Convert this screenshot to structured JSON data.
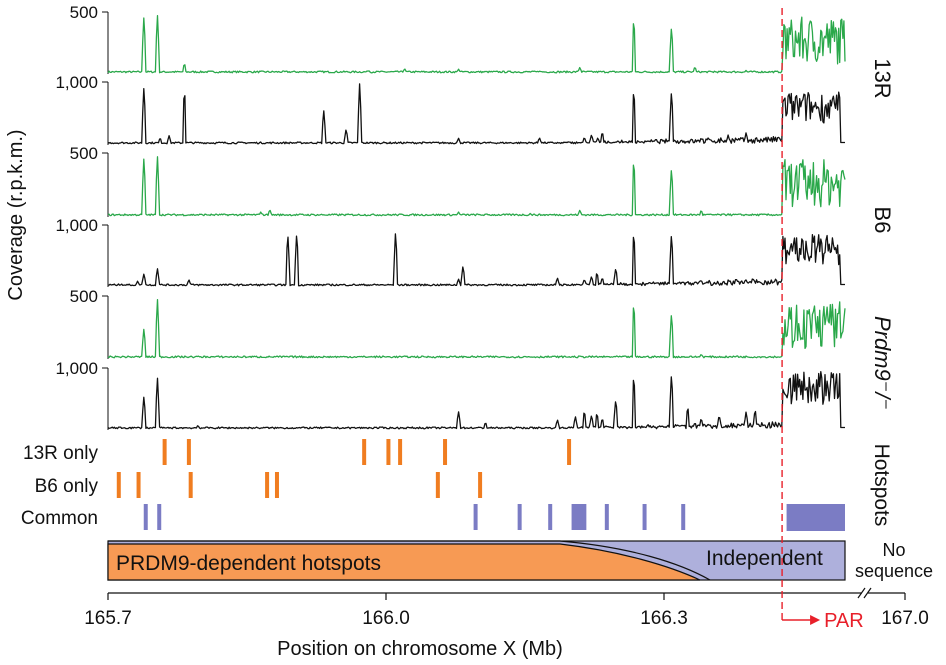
{
  "chart_data": {
    "type": "line",
    "ylabel": "Coverage (r.p.k.m.)",
    "xlabel": "Position on chromosome X (Mb)",
    "x_ticks": [
      "165.7",
      "166.0",
      "166.3",
      "167.0"
    ],
    "xlim": [
      165.7,
      166.52
    ],
    "par_boundary": 166.45,
    "par_label": "PAR",
    "colors": {
      "green": "#2aa84a",
      "black": "#111111",
      "orange": "#f07d20",
      "purple": "#7b7cc4",
      "purple_light": "#aeb0dc",
      "orange_fill": "#f79a54",
      "red": "#e8202a"
    },
    "strains": [
      {
        "name": "13R",
        "green": {
          "ytick": "500",
          "ylim": [
            0,
            500
          ],
          "peaks": [
            [
              165.74,
              480
            ],
            [
              165.755,
              480
            ],
            [
              165.785,
              90
            ],
            [
              165.99,
              30
            ],
            [
              166.03,
              45
            ],
            [
              166.09,
              40
            ],
            [
              166.18,
              25
            ],
            [
              166.225,
              55
            ],
            [
              166.285,
              480
            ],
            [
              166.327,
              400
            ],
            [
              166.353,
              60
            ],
            [
              166.375,
              25
            ],
            [
              166.41,
              30
            ]
          ],
          "region": {
            "start": 166.45,
            "end": 166.52,
            "base": 80,
            "amp": 380
          }
        },
        "black": {
          "ytick": "1,000",
          "ylim": [
            0,
            1000
          ],
          "peaks": [
            [
              165.74,
              950
            ],
            [
              165.758,
              120
            ],
            [
              165.768,
              150
            ],
            [
              165.785,
              950
            ],
            [
              165.94,
              570
            ],
            [
              165.965,
              260
            ],
            [
              165.98,
              980
            ],
            [
              166.09,
              110
            ],
            [
              166.18,
              120
            ],
            [
              166.23,
              130
            ],
            [
              166.238,
              170
            ],
            [
              166.245,
              120
            ],
            [
              166.25,
              220
            ],
            [
              166.285,
              950
            ],
            [
              166.327,
              900
            ],
            [
              166.36,
              120
            ],
            [
              166.39,
              160
            ],
            [
              166.41,
              200
            ]
          ],
          "region": {
            "start": 166.45,
            "end": 166.52,
            "base": 350,
            "amp": 500
          }
        }
      },
      {
        "name": "B6",
        "green": {
          "ytick": "500",
          "ylim": [
            0,
            500
          ],
          "peaks": [
            [
              165.74,
              480
            ],
            [
              165.755,
              480
            ],
            [
              165.87,
              40
            ],
            [
              165.88,
              60
            ],
            [
              166.09,
              40
            ],
            [
              166.17,
              30
            ],
            [
              166.225,
              55
            ],
            [
              166.285,
              480
            ],
            [
              166.327,
              400
            ],
            [
              166.36,
              55
            ],
            [
              166.39,
              25
            ]
          ],
          "region": {
            "start": 166.45,
            "end": 166.52,
            "base": 80,
            "amp": 370
          }
        },
        "black": {
          "ytick": "1,000",
          "ylim": [
            0,
            1000
          ],
          "peaks": [
            [
              165.715,
              50
            ],
            [
              165.733,
              100
            ],
            [
              165.74,
              220
            ],
            [
              165.755,
              300
            ],
            [
              165.79,
              120
            ],
            [
              165.9,
              900
            ],
            [
              165.91,
              920
            ],
            [
              166.02,
              920
            ],
            [
              166.09,
              130
            ],
            [
              166.095,
              350
            ],
            [
              166.2,
              150
            ],
            [
              166.23,
              130
            ],
            [
              166.238,
              180
            ],
            [
              166.244,
              250
            ],
            [
              166.25,
              160
            ],
            [
              166.265,
              320
            ],
            [
              166.285,
              950
            ],
            [
              166.327,
              900
            ],
            [
              166.36,
              120
            ],
            [
              166.385,
              100
            ],
            [
              166.41,
              120
            ]
          ],
          "region": {
            "start": 166.45,
            "end": 166.52,
            "base": 350,
            "amp": 500
          }
        }
      },
      {
        "name": "Prdm9⁻/⁻",
        "green": {
          "ytick": "500",
          "ylim": [
            0,
            500
          ],
          "peaks": [
            [
              165.74,
              250
            ],
            [
              165.755,
              480
            ],
            [
              166.285,
              480
            ],
            [
              166.327,
              380
            ],
            [
              166.36,
              40
            ],
            [
              166.4,
              30
            ]
          ],
          "region": {
            "start": 166.45,
            "end": 166.52,
            "base": 80,
            "amp": 380
          }
        },
        "black": {
          "ytick": "1,000",
          "ylim": [
            0,
            1000
          ],
          "peaks": [
            [
              165.74,
              560
            ],
            [
              165.755,
              850
            ],
            [
              165.8,
              80
            ],
            [
              166.09,
              300
            ],
            [
              166.12,
              130
            ],
            [
              166.2,
              170
            ],
            [
              166.22,
              220
            ],
            [
              166.23,
              330
            ],
            [
              166.238,
              250
            ],
            [
              166.244,
              290
            ],
            [
              166.25,
              200
            ],
            [
              166.265,
              520
            ],
            [
              166.285,
              950
            ],
            [
              166.327,
              950
            ],
            [
              166.345,
              400
            ],
            [
              166.36,
              200
            ],
            [
              166.38,
              250
            ],
            [
              166.41,
              300
            ],
            [
              166.42,
              350
            ]
          ],
          "region": {
            "start": 166.45,
            "end": 166.52,
            "base": 400,
            "amp": 550
          }
        }
      }
    ],
    "hotspot_title": "Hotspots",
    "hotspots": {
      "13R only": [
        165.763,
        165.79,
        165.985,
        166.012,
        166.025,
        166.075,
        166.213
      ],
      "B6 only": [
        165.712,
        165.734,
        165.792,
        165.877,
        165.888,
        166.067,
        166.114
      ],
      "Common": [
        165.742,
        165.757,
        166.109,
        166.158,
        166.192,
        166.218,
        166.222,
        166.226,
        166.23,
        166.255,
        166.297,
        166.34
      ]
    },
    "common_block": {
      "start": 166.455,
      "end": 166.52
    },
    "bottom_labels": {
      "dependent": "PRDM9-dependent hotspots",
      "independent": "Independent",
      "no_sequence_1": "No",
      "no_sequence_2": "sequence"
    }
  }
}
